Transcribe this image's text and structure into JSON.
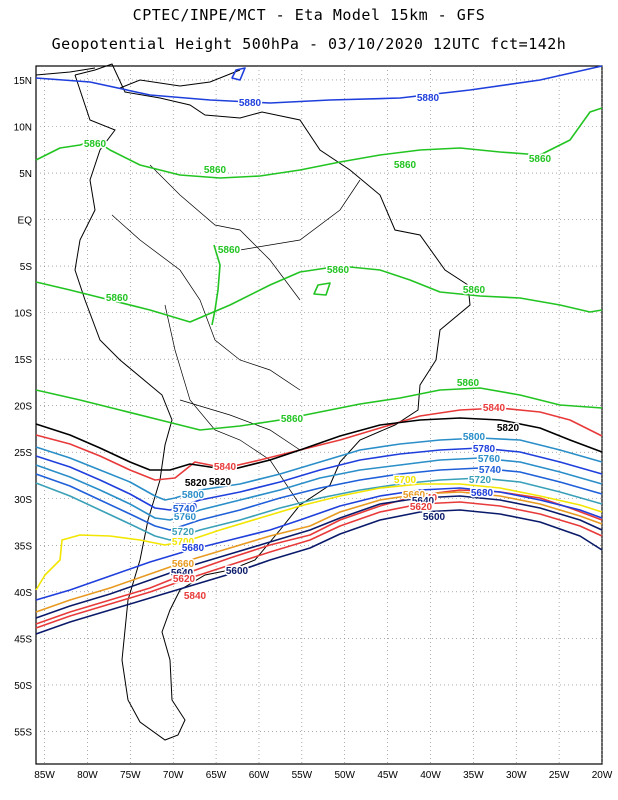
{
  "header": {
    "line1": "CPTEC/INPE/MCT -  Eta Model 15km - GFS",
    "line2": "Geopotential Height 500hPa - 03/10/2020 12UTC fct=142h"
  },
  "map": {
    "lat_labels": [
      "15N",
      "10N",
      "5N",
      "EQ",
      "5S",
      "10S",
      "15S",
      "20S",
      "25S",
      "30S",
      "35S",
      "40S",
      "45S",
      "50S",
      "55S"
    ],
    "lon_labels": [
      "85W",
      "80W",
      "75W",
      "70W",
      "65W",
      "60W",
      "55W",
      "50W",
      "45W",
      "40W",
      "35W",
      "30W",
      "25W",
      "20W"
    ],
    "extent": {
      "lon": [
        -86,
        -20
      ],
      "lat": [
        -58.5,
        16.5
      ]
    },
    "gridlines": "dotted",
    "contour_unit": "gpm"
  },
  "contours": [
    {
      "value": "5880",
      "color": "#1f3fdc",
      "labels": [
        "5880",
        "5880"
      ]
    },
    {
      "value": "5860",
      "color": "#22c422",
      "labels": [
        "5860",
        "5860",
        "5860",
        "5860",
        "5860",
        "5860",
        "5860",
        "5860",
        "5860",
        "5860"
      ]
    },
    {
      "value": "5840",
      "color": "#e83a3a",
      "labels": [
        "5840",
        "5840",
        "5840",
        "5840"
      ]
    },
    {
      "value": "5820",
      "color": "#000000",
      "labels": [
        "5820",
        "5820",
        "5820"
      ]
    },
    {
      "value": "5800",
      "color": "#2a8ec8",
      "labels": [
        "5800",
        "5800"
      ]
    },
    {
      "value": "5780",
      "color": "#1f3fdc",
      "labels": [
        "5780",
        "5780"
      ]
    },
    {
      "value": "5760",
      "color": "#2a8ec8",
      "labels": [
        "5760",
        "5760"
      ]
    },
    {
      "value": "5740",
      "color": "#1f5fd8",
      "labels": [
        "5740",
        "5740"
      ]
    },
    {
      "value": "5720",
      "color": "#3aa0b8",
      "labels": [
        "5720",
        "5720"
      ]
    },
    {
      "value": "5700",
      "color": "#f2e600",
      "labels": [
        "5700",
        "5700"
      ]
    },
    {
      "value": "5680",
      "color": "#1f3fdc",
      "labels": [
        "5680",
        "5680"
      ]
    },
    {
      "value": "5660",
      "color": "#e89a20",
      "labels": [
        "5660",
        "5660"
      ]
    },
    {
      "value": "5640",
      "color": "#0a1a6a",
      "labels": [
        "5640",
        "5640"
      ]
    },
    {
      "value": "5620",
      "color": "#e83a3a",
      "labels": [
        "5620",
        "5620"
      ]
    },
    {
      "value": "5600",
      "color": "#0a1a6a",
      "labels": [
        "5600",
        "5600"
      ]
    }
  ]
}
